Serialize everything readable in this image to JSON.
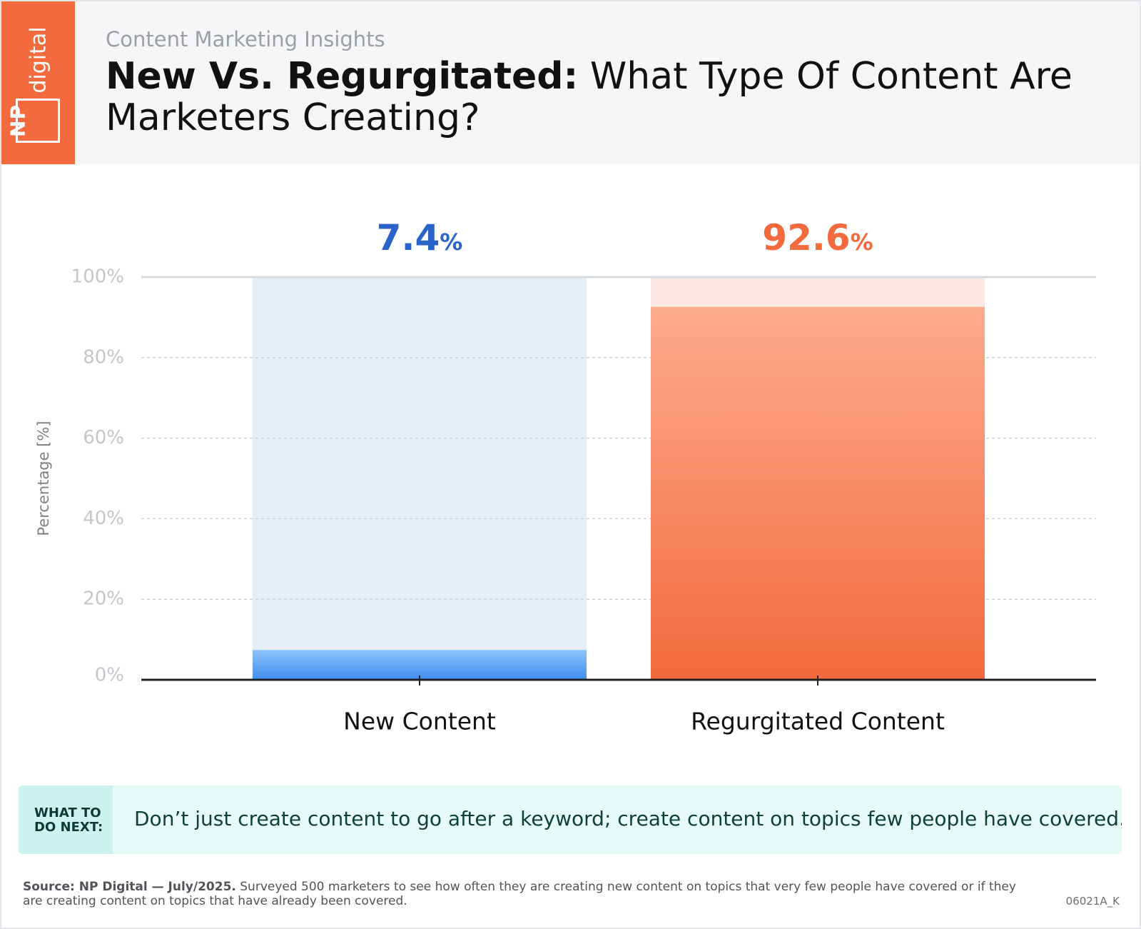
{
  "header": {
    "logo_text_np": "NP",
    "logo_text_digital": "digital",
    "eyebrow": "Content Marketing Insights",
    "title_bold": "New Vs. Regurgitated:",
    "title_rest": " What Type Of Content Are Marketers Creating?"
  },
  "colors": {
    "brand_orange": "#f26a3d",
    "new_bar": "#3d8ef0",
    "new_bar_track": "#e6eef8",
    "new_label": "#2a63c9",
    "regurgitated_bar": "#f26a3d",
    "regurgitated_track": "#fde9e4",
    "regurgitated_label": "#f26a3d"
  },
  "chart_data": {
    "type": "bar",
    "categories": [
      "New Content",
      "Regurgitated Content"
    ],
    "values": [
      7.4,
      92.6
    ],
    "value_labels": [
      "7.4",
      "92.6"
    ],
    "value_suffix": "%",
    "ylabel": "Percentage [%]",
    "yticks": [
      "0%",
      "20%",
      "40%",
      "60%",
      "80%",
      "100%"
    ],
    "ylim": [
      0,
      100
    ],
    "grid": true
  },
  "tip": {
    "tag": "WHAT TO DO NEXT:",
    "text": "Don’t just create content to go after a keyword; create content on topics few people have covered."
  },
  "footer": {
    "source_bold": "Source: NP Digital — July/2025.",
    "source_rest": " Surveyed 500 marketers to see how often they are creating new content on topics that very few people have covered or if they are creating content on topics that have already been covered.",
    "code": "06021A_K"
  }
}
